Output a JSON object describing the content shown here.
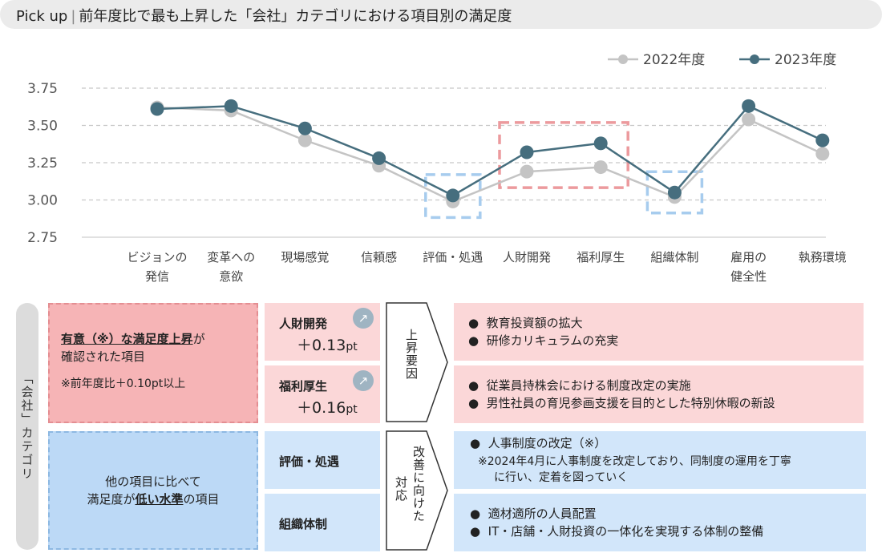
{
  "title": {
    "prefix": "Pick up",
    "separator": "|",
    "text": "前年度比で最も上昇した「会社」カテゴリにおける項目別の満足度"
  },
  "chart_data": {
    "type": "line",
    "categories": [
      "ビジョンの発信",
      "変革への意欲",
      "現場感覚",
      "信頼感",
      "評価・処遇",
      "人財開発",
      "福利厚生",
      "組織体制",
      "雇用の健全性",
      "執務環境"
    ],
    "category_lines": [
      [
        "ビジョンの",
        "発信"
      ],
      [
        "変革への",
        "意欲"
      ],
      [
        "現場感覚"
      ],
      [
        "信頼感"
      ],
      [
        "評価・処遇"
      ],
      [
        "人財開発"
      ],
      [
        "福利厚生"
      ],
      [
        "組織体制"
      ],
      [
        "雇用の",
        "健全性"
      ],
      [
        "執務環境"
      ]
    ],
    "series": [
      {
        "name": "2022年度",
        "color": "#c4c4c4",
        "values": [
          3.62,
          3.6,
          3.4,
          3.23,
          2.99,
          3.19,
          3.22,
          3.02,
          3.54,
          3.31
        ]
      },
      {
        "name": "2023年度",
        "color": "#466e7e",
        "values": [
          3.61,
          3.63,
          3.48,
          3.28,
          3.03,
          3.32,
          3.38,
          3.05,
          3.63,
          3.4
        ]
      }
    ],
    "yticks": [
      "3.75",
      "3.50",
      "3.25",
      "3.00",
      "2.75"
    ],
    "ylim": [
      2.75,
      3.75
    ],
    "grid": "dashed horizontal",
    "legend_position": "top-right",
    "highlight_groups": [
      {
        "categories": [
          "評価・処遇"
        ],
        "color": "#a7ccee"
      },
      {
        "categories": [
          "人財開発",
          "福利厚生"
        ],
        "color": "#ec9a9d"
      },
      {
        "categories": [
          "組織体制"
        ],
        "color": "#a7ccee"
      }
    ]
  },
  "category_label": "「会社」カテゴリ",
  "rise_group": {
    "line1_u": "有意（※）な満足度上昇",
    "line1_rest": "が",
    "line2": "確認された項目",
    "note": "※前年度比＋0.10pt以上"
  },
  "low_group": {
    "line1": "他の項目に比べて",
    "line2_pre": "満足度が",
    "line2_u": "低い水準",
    "line2_post": "の項目"
  },
  "items": {
    "jinzai": {
      "name": "人財開発",
      "value": "＋0.13",
      "unit": "pt",
      "icon": "arrow-up-right-icon"
    },
    "fukuri": {
      "name": "福利厚生",
      "value": "＋0.16",
      "unit": "pt",
      "icon": "arrow-up-right-icon"
    },
    "hyoka": {
      "name": "評価・処遇"
    },
    "soshiki": {
      "name": "組織体制"
    }
  },
  "factor_label": "上昇要因",
  "response_label_1": "改善に向けた",
  "response_label_2": "対応",
  "bullet": "●",
  "details": {
    "jinzai": [
      "教育投資額の拡大",
      "研修カリキュラムの充実"
    ],
    "fukuri": [
      "従業員持株会における制度改定の実施",
      "男性社員の育児参画支援を目的とした特別休暇の新設"
    ],
    "hyoka": {
      "bullet": "人事制度の改定（※）",
      "note1": "※2024年4月に人事制度を改定しており、同制度の運用を丁寧",
      "note2": "に行い、定着を図っていく"
    },
    "soshiki": [
      "適材適所の人員配置",
      "IT・店舗・人財投資の一体化を実現する体制の整備"
    ]
  }
}
